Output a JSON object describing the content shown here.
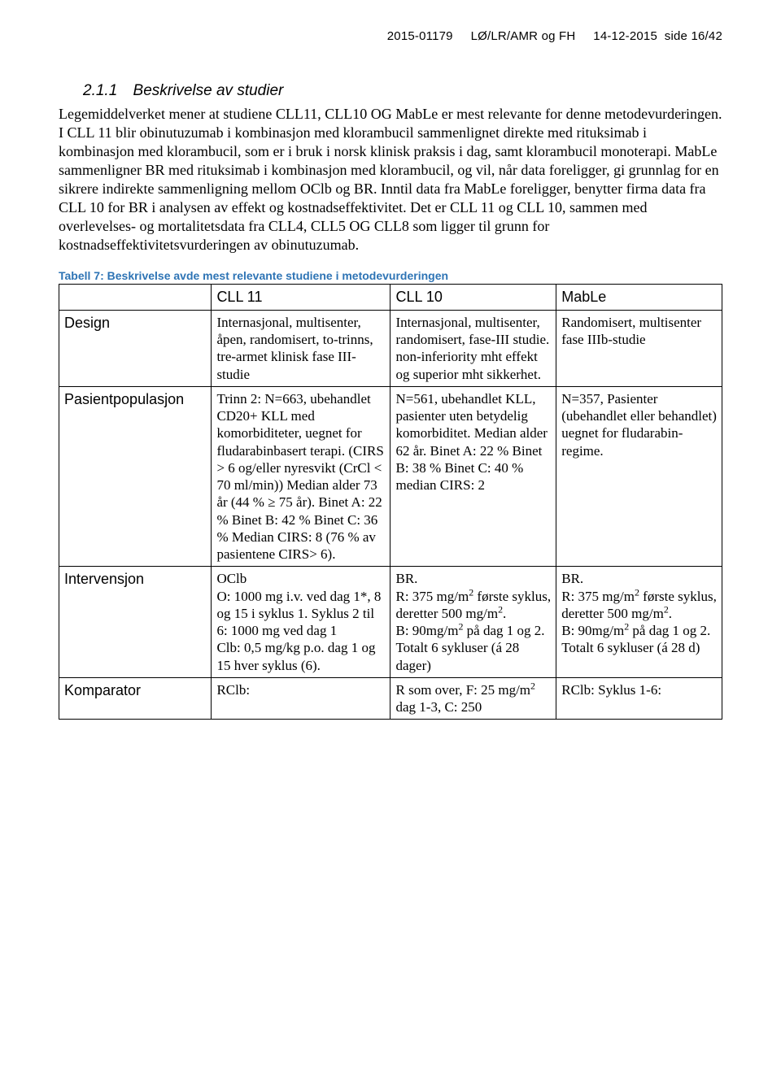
{
  "colors": {
    "text": "#000000",
    "caption": "#2e74b5",
    "background": "#ffffff",
    "border": "#000000"
  },
  "fonts": {
    "body_family": "Times New Roman",
    "ui_family": "Arial",
    "body_size_pt": 13,
    "heading_size_pt": 14,
    "caption_size_pt": 10
  },
  "header": {
    "case_no": "2015-01179",
    "code": "LØ/LR/AMR og FH",
    "date": "14-12-2015",
    "page": "side 16/42"
  },
  "section": {
    "number": "2.1.1",
    "title": "Beskrivelse av studier"
  },
  "paragraph": "Legemiddelverket mener at studiene CLL11, CLL10 OG MabLe er mest relevante for denne metodevurderingen. I CLL 11 blir obinutuzumab i kombinasjon med klorambucil sammenlignet direkte med rituksimab i kombinasjon med klorambucil, som er i bruk i norsk klinisk praksis i dag, samt klorambucil monoterapi. MabLe sammenligner BR med rituksimab i kombinasjon med klorambucil, og vil, når data foreligger, gi grunnlag for en sikrere indirekte sammenligning mellom OClb og BR. Inntil data fra MabLe foreligger, benytter firma data fra CLL 10 for BR i analysen av effekt og kostnadseffektivitet. Det er CLL 11 og CLL 10, sammen med overlevelses- og mortalitetsdata fra CLL4, CLL5 OG CLL8 som ligger til grunn for kostnadseffektivitetsvurderingen av obinutuzumab.",
  "table_caption": "Tabell 7: Beskrivelse avde mest relevante studiene i metodevurderingen",
  "table": {
    "columns": [
      "",
      "CLL 11",
      "CLL 10",
      "MabLe"
    ],
    "rows": [
      {
        "label": "Design",
        "cll11": "Internasjonal, multisenter, åpen, randomisert, to-trinns, tre-armet klinisk fase III-studie",
        "cll10": "Internasjonal, multisenter, randomisert, fase-III studie. non-inferiority mht effekt og superior mht sikkerhet.",
        "mable": "Randomisert, multisenter fase IIIb-studie"
      },
      {
        "label": "Pasientpopulasjon",
        "cll11": "Trinn 2: N=663, ubehandlet CD20+ KLL med komorbiditeter, uegnet for fludarabinbasert terapi. (CIRS > 6 og/eller nyresvikt (CrCl < 70 ml/min)) Median alder 73 år (44 % ≥ 75 år). Binet A: 22 % Binet B: 42 % Binet C: 36 % Median CIRS: 8 (76 % av pasientene CIRS> 6).",
        "cll10": "N=561, ubehandlet KLL, pasienter uten betydelig komorbiditet. Median alder 62 år. Binet A: 22 % Binet B: 38 % Binet C: 40 % median CIRS: 2",
        "mable": "N=357, Pasienter (ubehandlet eller behandlet) uegnet for fludarabin-regime."
      },
      {
        "label": "Intervensjon",
        "cll11_html": "OClb<br>O: 1000 mg i.v. ved dag 1*, 8 og 15 i syklus 1. Syklus 2 til 6: 1000 mg ved dag 1<br>Clb: 0,5 mg/kg p.o. dag 1 og 15 hver syklus (6).",
        "cll10_html": "BR.<br>R: 375 mg/m<sup>2</sup> første syklus, deretter 500 mg/m<sup>2</sup>.<br>B: 90mg/m<sup>2</sup> på dag 1 og 2. Totalt 6 sykluser (á 28 dager)",
        "mable_html": "BR.<br>R: 375 mg/m<sup>2</sup> første syklus, deretter 500 mg/m<sup>2</sup>.<br>B: 90mg/m<sup>2</sup> på dag 1 og 2. Totalt 6 sykluser (á 28 d)"
      },
      {
        "label": "Komparator",
        "cll11": "RClb:",
        "cll10_html": "R som over, F: 25 mg/m<sup>2</sup> dag 1-3, C: 250",
        "mable": "RClb: Syklus 1-6:"
      }
    ]
  }
}
